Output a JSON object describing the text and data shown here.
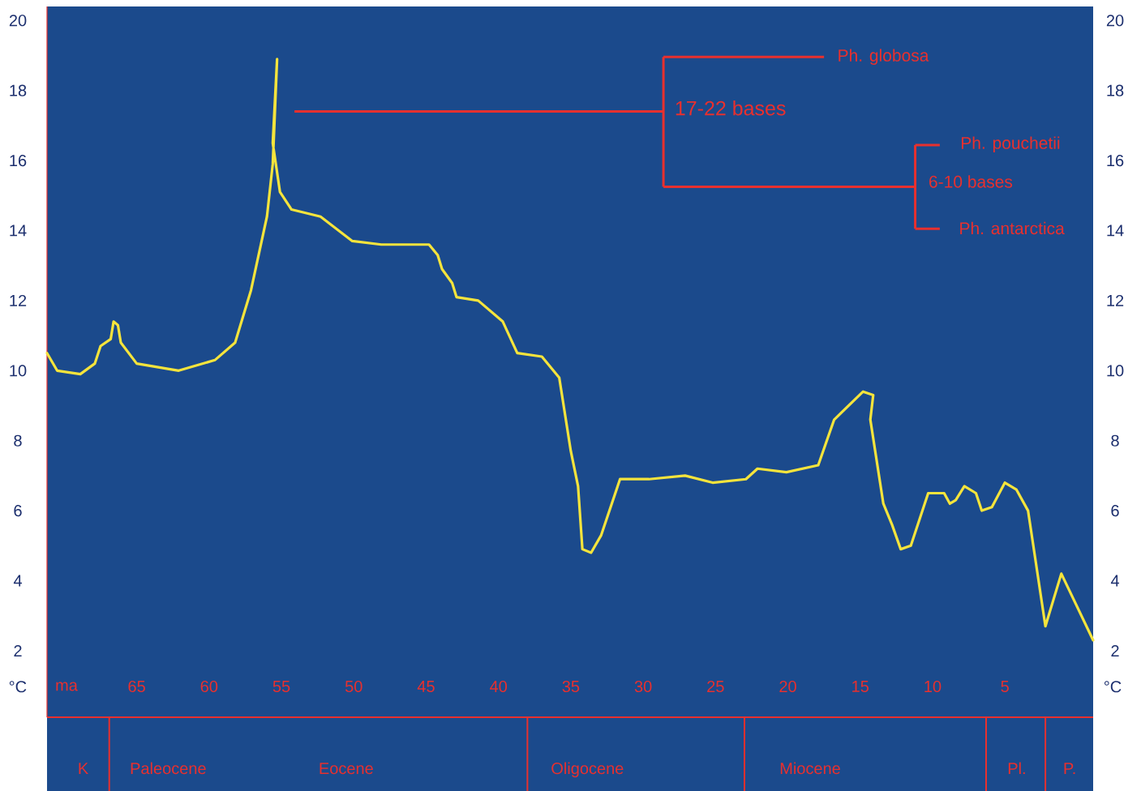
{
  "chart_data": {
    "type": "line",
    "xlabel": "ma",
    "ylabel": "°C",
    "y2label": "°C",
    "x": [
      71.2,
      70.5,
      68.9,
      67.9,
      67.5,
      66.8,
      66.6,
      66.3,
      66.1,
      65.0,
      62.1,
      59.6,
      58.2,
      57.1,
      56.0,
      55.6,
      55.3,
      55.6,
      55.1,
      54.3,
      52.3,
      50.1,
      48.1,
      44.8,
      44.2,
      43.9,
      43.2,
      42.9,
      41.4,
      39.7,
      38.7,
      37.0,
      35.8,
      35.0,
      34.5,
      34.2,
      33.6,
      32.9,
      31.6,
      29.6,
      27.1,
      25.2,
      22.9,
      22.1,
      20.1,
      17.9,
      16.8,
      14.8,
      14.1,
      14.3,
      13.4,
      12.8,
      12.2,
      11.5,
      10.3,
      9.2,
      8.8,
      8.4,
      7.8,
      7.0,
      6.6,
      5.9,
      5.0,
      4.2,
      3.4,
      2.2,
      1.1,
      -1.1
    ],
    "series": [
      {
        "color": "#f5e43c",
        "values": [
          10.5,
          10.0,
          9.9,
          10.2,
          10.7,
          10.9,
          11.4,
          11.3,
          10.8,
          10.2,
          10.0,
          10.3,
          10.8,
          12.3,
          14.4,
          15.9,
          18.9,
          16.5,
          15.1,
          14.6,
          14.4,
          13.7,
          13.6,
          13.6,
          13.3,
          12.9,
          12.5,
          12.1,
          12.0,
          11.4,
          10.5,
          10.4,
          9.8,
          7.7,
          6.7,
          4.9,
          4.8,
          5.3,
          6.9,
          6.9,
          7.0,
          6.8,
          6.9,
          7.2,
          7.1,
          7.3,
          8.6,
          9.4,
          9.3,
          8.6,
          6.2,
          5.6,
          4.9,
          5.0,
          6.5,
          6.5,
          6.2,
          6.3,
          6.7,
          6.5,
          6.0,
          6.1,
          6.8,
          6.6,
          6.0,
          2.7,
          4.2,
          2.3
        ]
      }
    ],
    "xlim": [
      71.2,
      -1.1
    ],
    "xticks": [
      65,
      60,
      55,
      50,
      45,
      40,
      35,
      30,
      25,
      20,
      15,
      10,
      5
    ],
    "ylim": [
      0.1,
      20.4
    ],
    "yticks": [
      2,
      4,
      6,
      8,
      10,
      12,
      14,
      16,
      18,
      20
    ],
    "y2lim": [
      0.1,
      20.4
    ],
    "y2ticks": [
      2,
      4,
      6,
      8,
      10,
      12,
      14,
      16,
      18,
      20
    ],
    "annotations": [
      "Ph. globosa",
      "17-22 bases",
      "Ph. pouchetii",
      "6-10 bases",
      "Ph. antarctica",
      "K",
      "Paleocene",
      "Eocene",
      "Oligocene",
      "Miocene",
      "Pl.",
      "P."
    ]
  }
}
